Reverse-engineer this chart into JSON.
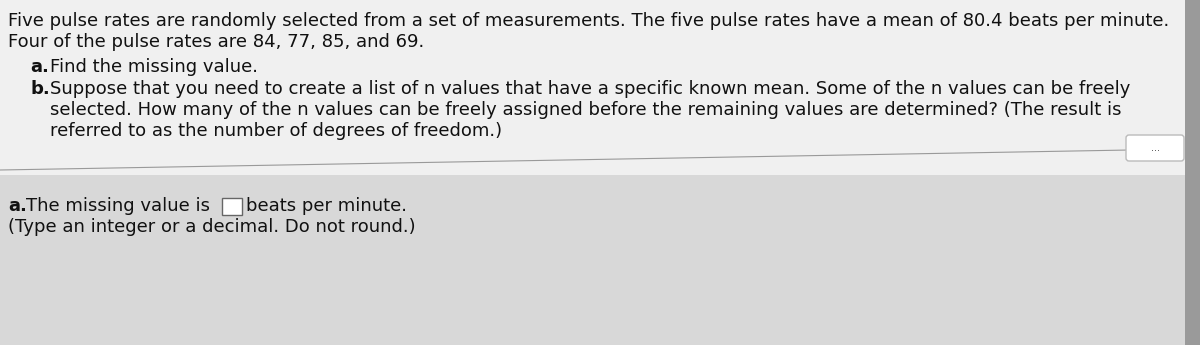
{
  "background_color": "#c8c8c8",
  "top_panel_color": "#f0f0f0",
  "bottom_panel_color": "#d8d8d8",
  "divider_color": "#999999",
  "text_color": "#111111",
  "line1": "Five pulse rates are randomly selected from a set of measurements. The five pulse rates have a mean of 80.4 beats per minute.",
  "line2": "Four of the pulse rates are 84, 77, 85, and 69.",
  "item_a_label": "a.",
  "item_a_text": " Find the missing value.",
  "item_b_label": "b.",
  "item_b_line1": " Suppose that you need to create a list of n values that have a specific known mean. Some of the n values can be freely",
  "item_b_line2": "   selected. How many of the n values can be freely assigned before the remaining values are determined? (The result is",
  "item_b_line3": "   referred to as the number of degrees of freedom.)",
  "divider_dots": "...",
  "answer_a_bold": "a.",
  "answer_line1_pre": " The missing value is",
  "answer_line1_post": " beats per minute.",
  "answer_line2": "(Type an integer or a decimal. Do not round.)",
  "figwidth": 12.0,
  "figheight": 3.45,
  "dpi": 100
}
